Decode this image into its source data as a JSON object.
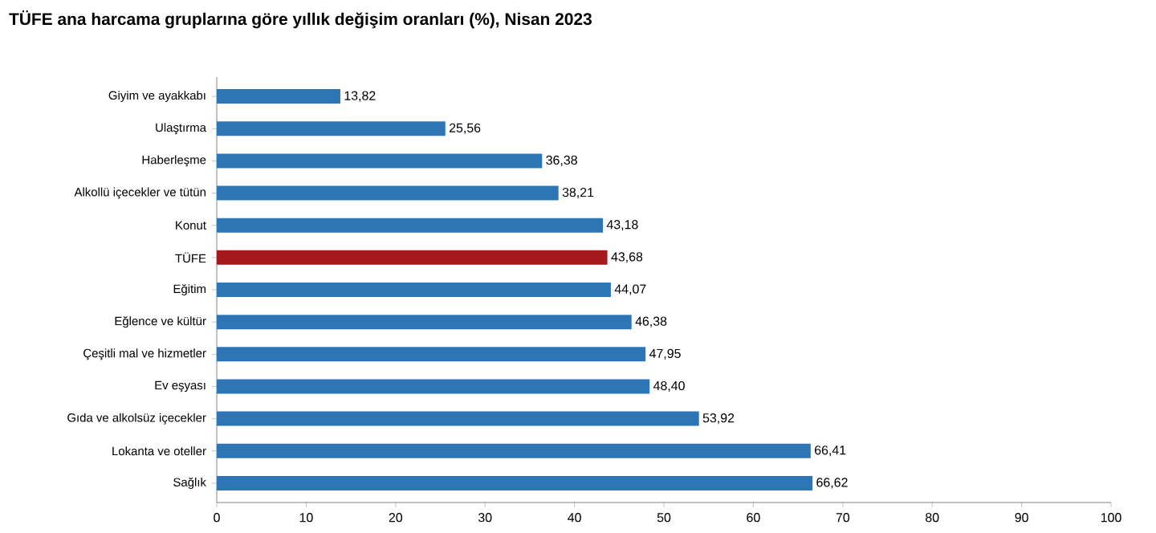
{
  "chart_data": {
    "type": "bar",
    "orientation": "horizontal",
    "title": "TÜFE ana harcama gruplarına göre yıllık değişim oranları (%), Nisan 2023",
    "categories": [
      "Giyim ve ayakkabı",
      "Ulaştırma",
      "Haberleşme",
      "Alkollü içecekler ve tütün",
      "Konut",
      "TÜFE",
      "Eğitim",
      "Eğlence ve kültür",
      "Çeşitli mal ve hizmetler",
      "Ev eşyası",
      "Gıda ve alkolsüz içecekler",
      "Lokanta ve oteller",
      "Sağlık"
    ],
    "values": [
      13.82,
      25.56,
      36.38,
      38.21,
      43.18,
      43.68,
      44.07,
      46.38,
      47.95,
      48.4,
      53.92,
      66.41,
      66.62
    ],
    "value_labels": [
      "13,82",
      "25,56",
      "36,38",
      "38,21",
      "43,18",
      "43,68",
      "44,07",
      "46,38",
      "47,95",
      "48,40",
      "53,92",
      "66,41",
      "66,62"
    ],
    "colors": [
      "#2e75b6",
      "#2e75b6",
      "#2e75b6",
      "#2e75b6",
      "#2e75b6",
      "#a5191d",
      "#2e75b6",
      "#2e75b6",
      "#2e75b6",
      "#2e75b6",
      "#2e75b6",
      "#2e75b6",
      "#2e75b6"
    ],
    "xlim": [
      0,
      100
    ],
    "xticks": [
      0,
      10,
      20,
      30,
      40,
      50,
      60,
      70,
      80,
      90,
      100
    ]
  }
}
